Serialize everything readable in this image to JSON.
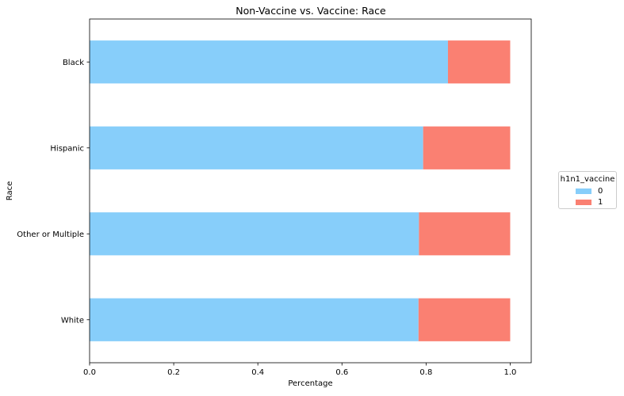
{
  "chart_data": {
    "type": "bar",
    "orientation": "horizontal",
    "stacked": true,
    "title": "Non-Vaccine vs. Vaccine: Race",
    "xlabel": "Percentage",
    "ylabel": "Race",
    "categories": [
      "Black",
      "Hispanic",
      "Other or Multiple",
      "White"
    ],
    "series": [
      {
        "name": "0",
        "values": [
          0.852,
          0.793,
          0.783,
          0.782
        ],
        "color": "#87CEFA"
      },
      {
        "name": "1",
        "values": [
          0.148,
          0.207,
          0.217,
          0.218
        ],
        "color": "#FA8072"
      }
    ],
    "xlim": [
      0,
      1.05
    ],
    "xticks": [
      "0.0",
      "0.2",
      "0.4",
      "0.6",
      "0.8",
      "1.0"
    ],
    "grid": false,
    "legend": {
      "title": "h1n1_vaccine",
      "placement": "right"
    }
  }
}
